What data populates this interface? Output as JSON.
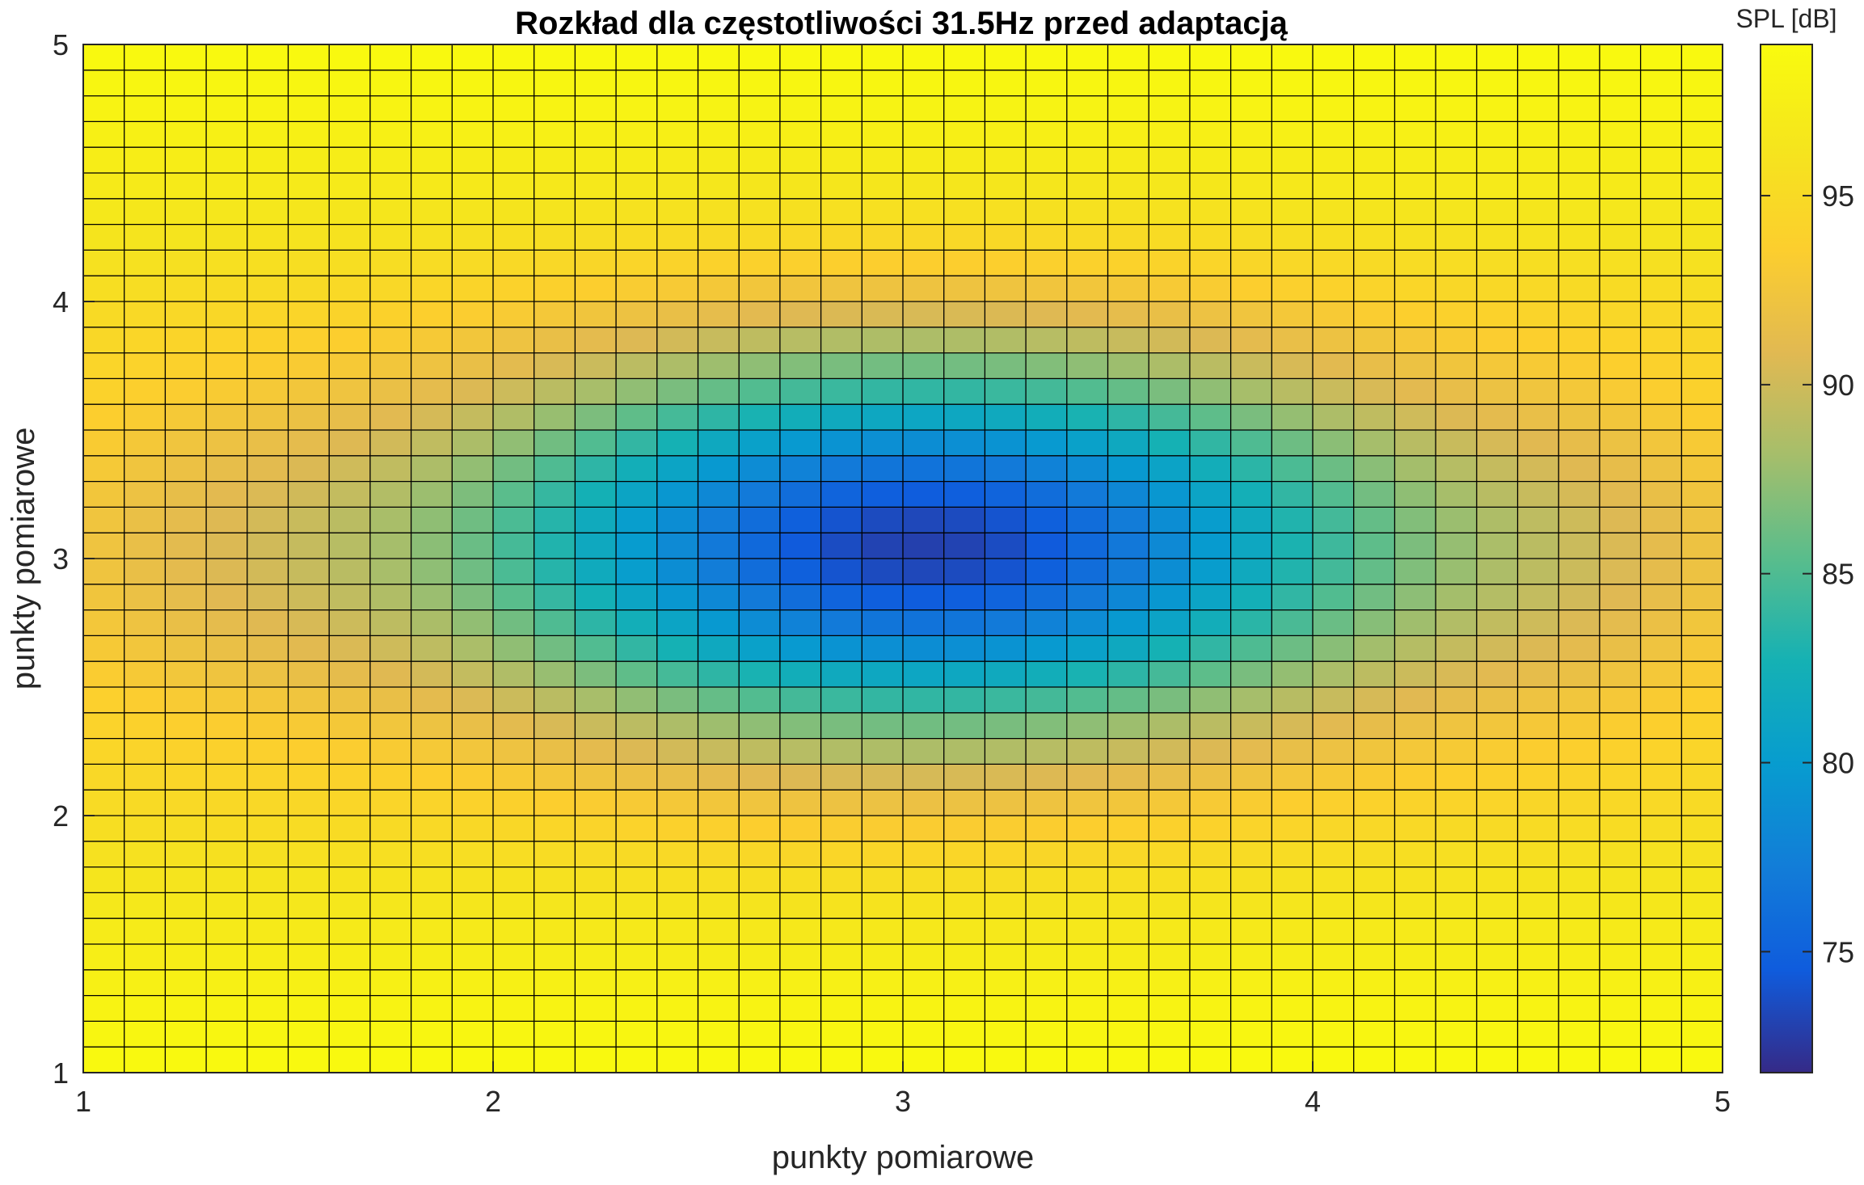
{
  "chart_data": {
    "type": "heatmap",
    "title": "Rozkład dla częstotliwości 31.5Hz przed adaptacją",
    "xlabel": "punkty pomiarowe",
    "ylabel": "punkty pomiarowe",
    "xlim": [
      1,
      5
    ],
    "ylim": [
      1,
      5
    ],
    "x_ticks": [
      "1",
      "2",
      "3",
      "4",
      "5"
    ],
    "y_ticks": [
      "1",
      "2",
      "3",
      "4",
      "5"
    ],
    "grid": {
      "x_cells": 40,
      "y_cells": 40
    },
    "colorbar": {
      "label": "SPL [dB]",
      "range": [
        71.8,
        99
      ],
      "ticks": [
        "75",
        "80",
        "85",
        "90",
        "95"
      ],
      "colormap": "parula"
    },
    "field": {
      "description_values": "SPL minimum ~72 dB near (3.05, 3.05); corners ~98-99 dB; orange ring ~95-96 dB around x≈1.5 and x≈4.5 near y≈2 and y≈4",
      "min_point": [
        3.05,
        3.05
      ],
      "min_value": 72,
      "max_value": 99
    }
  }
}
